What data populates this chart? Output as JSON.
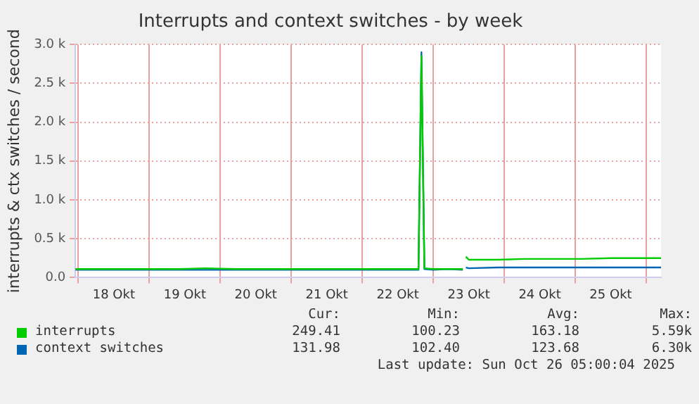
{
  "chart_data": {
    "type": "line",
    "title": "Interrupts and context switches - by week",
    "ylabel": "interrupts & ctx switches / second",
    "xlim": [
      "2025-10-17T23:00",
      "2025-10-26T05:00"
    ],
    "xticks": [
      {
        "value": "2025-10-18T00:00",
        "label": null
      },
      {
        "value": "2025-10-18T12:00",
        "label": "18 Okt"
      },
      {
        "value": "2025-10-19T00:00",
        "label": null
      },
      {
        "value": "2025-10-19T12:00",
        "label": "19 Okt"
      },
      {
        "value": "2025-10-20T00:00",
        "label": null
      },
      {
        "value": "2025-10-20T12:00",
        "label": "20 Okt"
      },
      {
        "value": "2025-10-21T00:00",
        "label": null
      },
      {
        "value": "2025-10-21T12:00",
        "label": "21 Okt"
      },
      {
        "value": "2025-10-22T00:00",
        "label": null
      },
      {
        "value": "2025-10-22T12:00",
        "label": "22 Okt"
      },
      {
        "value": "2025-10-23T00:00",
        "label": null
      },
      {
        "value": "2025-10-23T12:00",
        "label": "23 Okt"
      },
      {
        "value": "2025-10-24T00:00",
        "label": null
      },
      {
        "value": "2025-10-24T12:00",
        "label": "24 Okt"
      },
      {
        "value": "2025-10-25T00:00",
        "label": null
      },
      {
        "value": "2025-10-25T12:00",
        "label": "25 Okt"
      },
      {
        "value": "2025-10-26T00:00",
        "label": null
      }
    ],
    "ylim": [
      0,
      3000
    ],
    "yticks": [
      {
        "value": 0,
        "label": "0.0"
      },
      {
        "value": 500,
        "label": "0.5 k"
      },
      {
        "value": 1000,
        "label": "1.0 k"
      },
      {
        "value": 1500,
        "label": "1.5 k"
      },
      {
        "value": 2000,
        "label": "2.0 k"
      },
      {
        "value": 2500,
        "label": "2.5 k"
      },
      {
        "value": 3000,
        "label": "3.0 k"
      }
    ],
    "grid": true,
    "legend": "bottom",
    "marker": "none",
    "line_style": "solid",
    "x": [
      "2025-10-17T23:00",
      "2025-10-18T07:00",
      "2025-10-18T14:00",
      "2025-10-19T00:00",
      "2025-10-19T10:00",
      "2025-10-19T19:00",
      "2025-10-20T05:00",
      "2025-10-20T14:00",
      "2025-10-21T00:00",
      "2025-10-21T10:00",
      "2025-10-21T19:00",
      "2025-10-22T05:00",
      "2025-10-22T14:00",
      "2025-10-22T19:00",
      "2025-10-22T20:00",
      "2025-10-22T21:00",
      "2025-10-23T00:00",
      "2025-10-23T05:00",
      "2025-10-23T10:00",
      "2025-10-23T10:30",
      "2025-10-23T11:00",
      "2025-10-23T12:00",
      "2025-10-23T22:00",
      "2025-10-24T07:00",
      "2025-10-24T17:00",
      "2025-10-25T02:00",
      "2025-10-25T12:00",
      "2025-10-25T22:00",
      "2025-10-26T05:00"
    ],
    "series": [
      {
        "name": "interrupts",
        "color": "#00cc00",
        "values": [
          110,
          110,
          110,
          110,
          110,
          120,
          110,
          110,
          110,
          110,
          110,
          110,
          110,
          110,
          2850,
          120,
          110,
          110,
          110,
          null,
          270,
          230,
          230,
          240,
          240,
          240,
          250,
          250,
          250
        ]
      },
      {
        "name": "context switches",
        "color": "#0066b3",
        "values": [
          100,
          100,
          100,
          100,
          100,
          100,
          100,
          100,
          100,
          100,
          100,
          100,
          100,
          100,
          2900,
          110,
          100,
          110,
          100,
          null,
          130,
          120,
          130,
          130,
          130,
          130,
          130,
          130,
          130
        ]
      }
    ],
    "annotations": [
      "Cur:",
      "Min:",
      "Avg:",
      "Max:",
      "249.41",
      "100.23",
      "163.18",
      "5.59k",
      "131.98",
      "102.40",
      "123.68",
      "6.30k",
      "Last update: Sun Oct 26 05:00:04 2025"
    ]
  }
}
